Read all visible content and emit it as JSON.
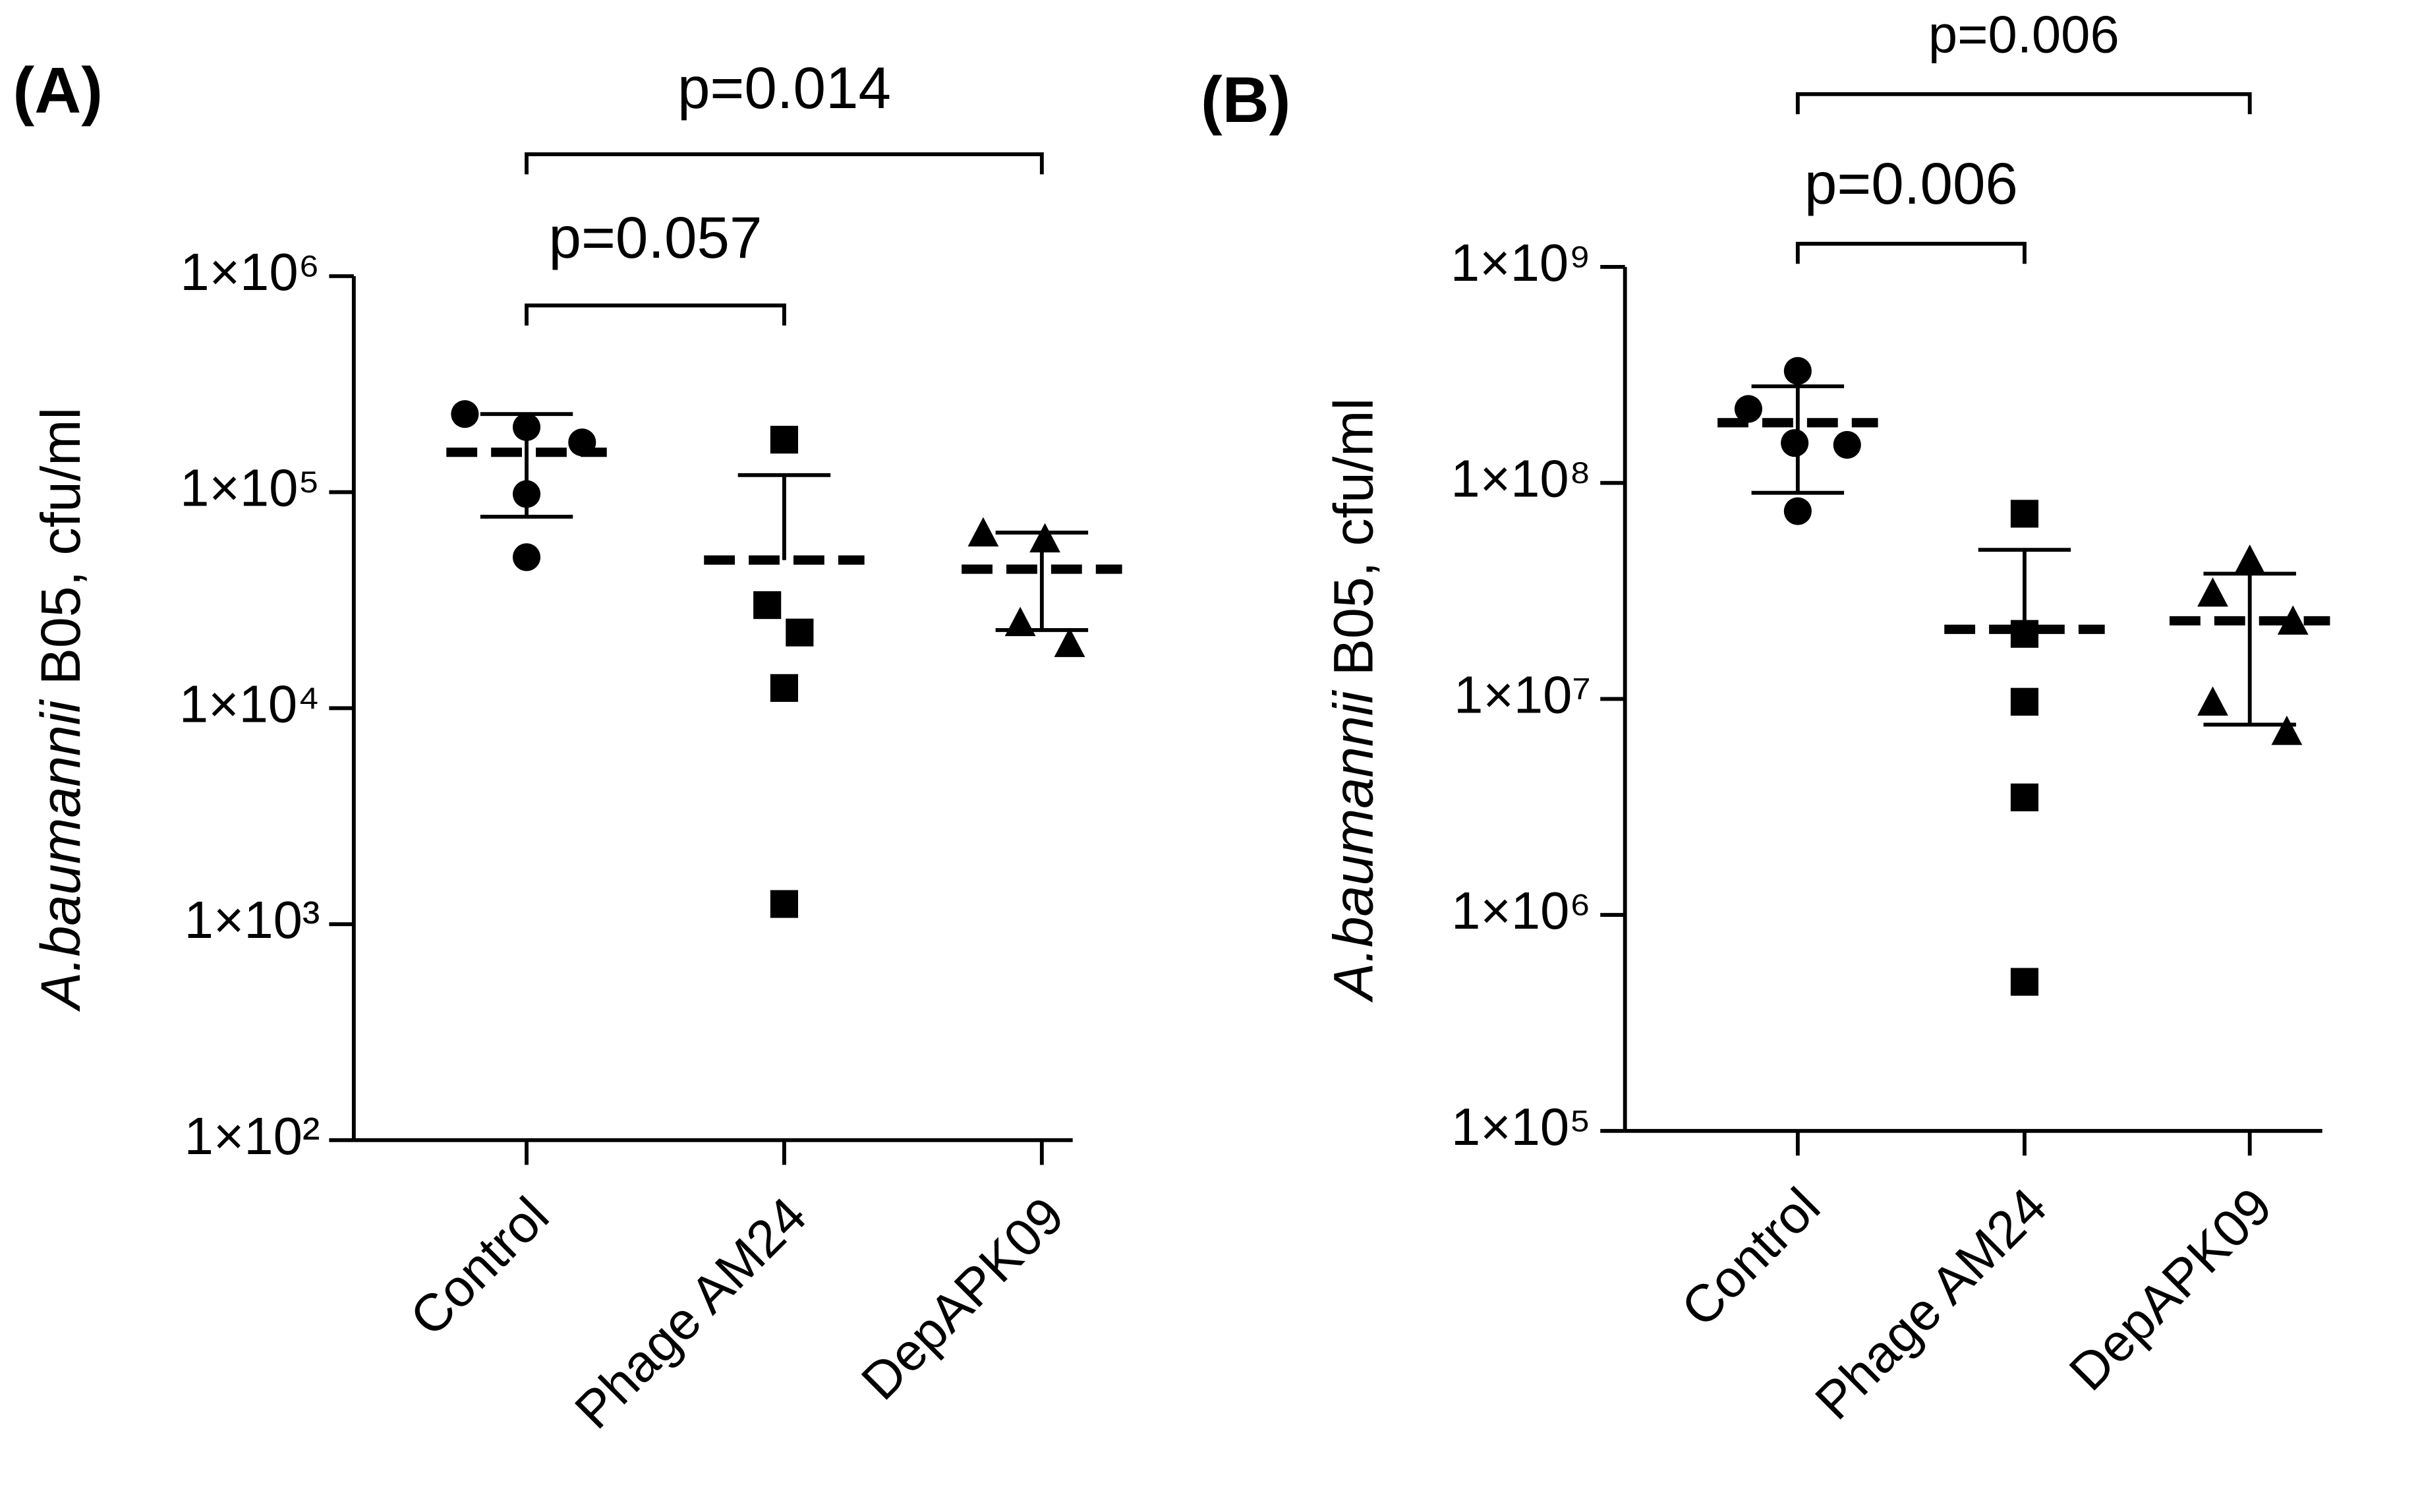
{
  "chart_data": [
    {
      "type": "dot",
      "panel_label": "(A)",
      "ylabel": {
        "italic": "A.baumannii",
        "rest": " B05, cfu/ml"
      },
      "categories": [
        "Control",
        "Phage AM24",
        "DepAPK09"
      ],
      "markers": [
        "circle",
        "square",
        "triangle"
      ],
      "color": "#000000",
      "log_y": true,
      "ylim": [
        100,
        1000000
      ],
      "yticks": [
        {
          "value": 100,
          "label": "1×10²"
        },
        {
          "value": 1000,
          "label": "1×10³"
        },
        {
          "value": 10000,
          "label": "1×10⁴"
        },
        {
          "value": 100000,
          "label": "1×10⁵"
        },
        {
          "value": 1000000,
          "label": "1×10⁶"
        }
      ],
      "values": [
        [
          230000,
          200000,
          170000,
          98000,
          50000
        ],
        [
          175000,
          30000,
          22400,
          12400,
          1240
        ],
        [
          65000,
          61000,
          25000,
          20000
        ]
      ],
      "means": [
        153000,
        48500,
        44000
      ],
      "sd_upper": [
        230000,
        120000,
        65000
      ],
      "sd_lower": [
        77000,
        null,
        23000
      ],
      "annotations": [
        "p=0.014",
        "p=0.057"
      ]
    },
    {
      "type": "dot",
      "panel_label": "(B)",
      "ylabel": {
        "italic": "A.baumannii",
        "rest": " B05, cfu/ml"
      },
      "categories": [
        "Control",
        "Phage AM24",
        "DepAPK09"
      ],
      "markers": [
        "circle",
        "square",
        "triangle"
      ],
      "color": "#000000",
      "log_y": true,
      "ylim": [
        100000,
        1000000000
      ],
      "yticks": [
        {
          "value": 100000,
          "label": "1×10⁵"
        },
        {
          "value": 1000000,
          "label": "1×10⁶"
        },
        {
          "value": 10000000,
          "label": "1×10⁷"
        },
        {
          "value": 100000000,
          "label": "1×10⁸"
        },
        {
          "value": 1000000000,
          "label": "1×10⁹"
        }
      ],
      "values": [
        [
          220000000,
          330000000,
          153000000,
          150000000,
          74000000
        ],
        [
          72000000,
          20000000,
          9700000,
          3500000,
          490000
        ],
        [
          44000000,
          31000000,
          23000000,
          9700000,
          7100000
        ]
      ],
      "means": [
        190000000,
        21000000,
        23000000
      ],
      "sd_upper": [
        280000000,
        49000000,
        38000000
      ],
      "sd_lower": [
        90000000,
        null,
        7600000
      ],
      "annotations": [
        "p=0.006",
        "p=0.006"
      ]
    }
  ]
}
